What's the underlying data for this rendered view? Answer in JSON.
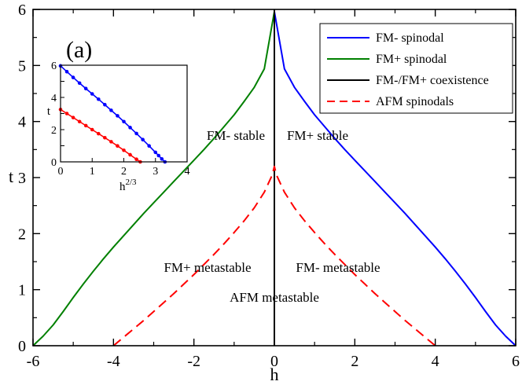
{
  "chart_data": [
    {
      "type": "line",
      "panel_label": "(a)",
      "xlabel": "h",
      "ylabel": "t",
      "xlim": [
        -6,
        6
      ],
      "ylim": [
        0,
        6
      ],
      "xticks": [
        -6,
        -4,
        -2,
        0,
        2,
        4,
        6
      ],
      "yticks": [
        0,
        1,
        2,
        3,
        4,
        5,
        6
      ],
      "series": [
        {
          "name": "FM- spinodal",
          "color": "#0000ff",
          "dash": "solid",
          "x": [
            0,
            0.25,
            0.5,
            0.75,
            1,
            1.25,
            1.5,
            1.75,
            2,
            2.25,
            2.5,
            2.75,
            3,
            3.25,
            3.5,
            3.75,
            4,
            4.25,
            4.5,
            4.75,
            5,
            5.25,
            5.5,
            5.75,
            6
          ],
          "y": [
            5.96,
            4.94,
            4.61,
            4.36,
            4.12,
            3.91,
            3.7,
            3.5,
            3.31,
            3.12,
            2.93,
            2.74,
            2.55,
            2.36,
            2.16,
            1.96,
            1.76,
            1.55,
            1.33,
            1.1,
            0.86,
            0.61,
            0.37,
            0.17,
            0
          ]
        },
        {
          "name": "FM+ spinodal",
          "color": "#008000",
          "dash": "solid",
          "x": [
            0,
            -0.25,
            -0.5,
            -0.75,
            -1,
            -1.25,
            -1.5,
            -1.75,
            -2,
            -2.25,
            -2.5,
            -2.75,
            -3,
            -3.25,
            -3.5,
            -3.75,
            -4,
            -4.25,
            -4.5,
            -4.75,
            -5,
            -5.25,
            -5.5,
            -5.75,
            -6
          ],
          "y": [
            5.96,
            4.94,
            4.61,
            4.36,
            4.12,
            3.91,
            3.7,
            3.5,
            3.31,
            3.12,
            2.93,
            2.74,
            2.55,
            2.36,
            2.16,
            1.96,
            1.76,
            1.55,
            1.33,
            1.1,
            0.86,
            0.61,
            0.37,
            0.17,
            0
          ]
        },
        {
          "name": "FM-/FM+ coexistence",
          "color": "#000000",
          "dash": "solid",
          "x": [
            0,
            0
          ],
          "y": [
            0,
            6
          ]
        },
        {
          "name": "AFM spinodals",
          "color": "#ff0000",
          "dash": "dashed",
          "x": [
            -4,
            -3.75,
            -3.5,
            -3.25,
            -3,
            -2.75,
            -2.5,
            -2.25,
            -2,
            -1.75,
            -1.5,
            -1.25,
            -1,
            -0.75,
            -0.5,
            -0.25,
            -0.05,
            0,
            0.05,
            0.25,
            0.5,
            0.75,
            1,
            1.25,
            1.5,
            1.75,
            2,
            2.25,
            2.5,
            2.75,
            3,
            3.25,
            3.5,
            3.75,
            4
          ],
          "y": [
            0,
            0.15,
            0.3,
            0.45,
            0.61,
            0.77,
            0.93,
            1.1,
            1.27,
            1.45,
            1.63,
            1.82,
            2.02,
            2.23,
            2.46,
            2.74,
            3.05,
            3.2,
            3.05,
            2.74,
            2.46,
            2.23,
            2.02,
            1.82,
            1.63,
            1.45,
            1.27,
            1.1,
            0.93,
            0.77,
            0.61,
            0.45,
            0.3,
            0.15,
            0
          ]
        }
      ],
      "legend": [
        {
          "label": "FM- spinodal",
          "color": "#0000ff",
          "dash": "solid"
        },
        {
          "label": "FM+ spinodal",
          "color": "#008000",
          "dash": "solid"
        },
        {
          "label": "FM-/FM+ coexistence",
          "color": "#000000",
          "dash": "solid"
        },
        {
          "label": "AFM spinodals",
          "color": "#ff0000",
          "dash": "dashed"
        }
      ],
      "annotations": [
        {
          "text": "FM- stable",
          "x": -1.35,
          "y": 4.5
        },
        {
          "text": "FM+ stable",
          "x": 1.35,
          "y": 4.5
        },
        {
          "text": "FM+ metastable",
          "x": -2.0,
          "y": 1.6
        },
        {
          "text": "FM- metastable",
          "x": 2.0,
          "y": 1.6
        },
        {
          "text": "AFM metastable",
          "x": 0,
          "y": 1.05
        }
      ]
    },
    {
      "type": "line",
      "role": "inset",
      "xlabel": "h^{2/3}",
      "xlabel_base": "h",
      "xlabel_sup": "2/3",
      "ylabel": "t",
      "xlim": [
        0,
        4
      ],
      "ylim": [
        0,
        6
      ],
      "xticks": [
        0,
        1,
        2,
        3,
        4
      ],
      "yticks": [
        0,
        1,
        2,
        3,
        4,
        5,
        6
      ],
      "series": [
        {
          "name": "FM- spinodal",
          "color": "#0000ff",
          "markers": true,
          "x": [
            0,
            0.2,
            0.4,
            0.6,
            0.8,
            1.0,
            1.2,
            1.4,
            1.6,
            1.8,
            2.0,
            2.2,
            2.4,
            2.6,
            2.8,
            3.0,
            3.1,
            3.2,
            3.3
          ],
          "y": [
            5.96,
            5.6,
            5.24,
            4.89,
            4.55,
            4.22,
            3.89,
            3.55,
            3.2,
            2.86,
            2.5,
            2.13,
            1.76,
            1.38,
            0.99,
            0.59,
            0.39,
            0.18,
            0
          ]
        },
        {
          "name": "AFM spinodals",
          "color": "#ff0000",
          "markers": true,
          "x": [
            0,
            0.2,
            0.4,
            0.6,
            0.8,
            1.0,
            1.2,
            1.4,
            1.6,
            1.8,
            2.0,
            2.2,
            2.4,
            2.52
          ],
          "y": [
            3.25,
            3.0,
            2.75,
            2.5,
            2.25,
            2.0,
            1.75,
            1.5,
            1.25,
            0.99,
            0.72,
            0.44,
            0.16,
            0
          ]
        }
      ]
    }
  ]
}
